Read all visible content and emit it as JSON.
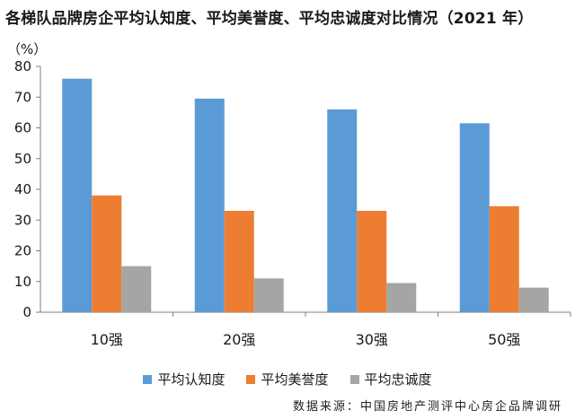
{
  "chart_data": {
    "type": "bar",
    "title": "各梯队品牌房企平均认知度、平均美誉度、平均忠诚度对比情况（2021 年）",
    "ylabel": "（%）",
    "xlabel": "",
    "categories": [
      "10强",
      "20强",
      "30强",
      "50强"
    ],
    "series": [
      {
        "name": "平均认知度",
        "color": "#5b9bd5",
        "values": [
          76,
          69.5,
          66,
          61.5
        ]
      },
      {
        "name": "平均美誉度",
        "color": "#ed7d31",
        "values": [
          38,
          33,
          33,
          34.5
        ]
      },
      {
        "name": "平均忠诚度",
        "color": "#a5a5a5",
        "values": [
          15,
          11,
          9.5,
          8
        ]
      }
    ],
    "ylim": [
      0,
      80
    ],
    "yticks": [
      0,
      10,
      20,
      30,
      40,
      50,
      60,
      70,
      80
    ],
    "grid": false,
    "legend_position": "bottom",
    "source": "数据来源：中国房地产测评中心房企品牌调研"
  }
}
